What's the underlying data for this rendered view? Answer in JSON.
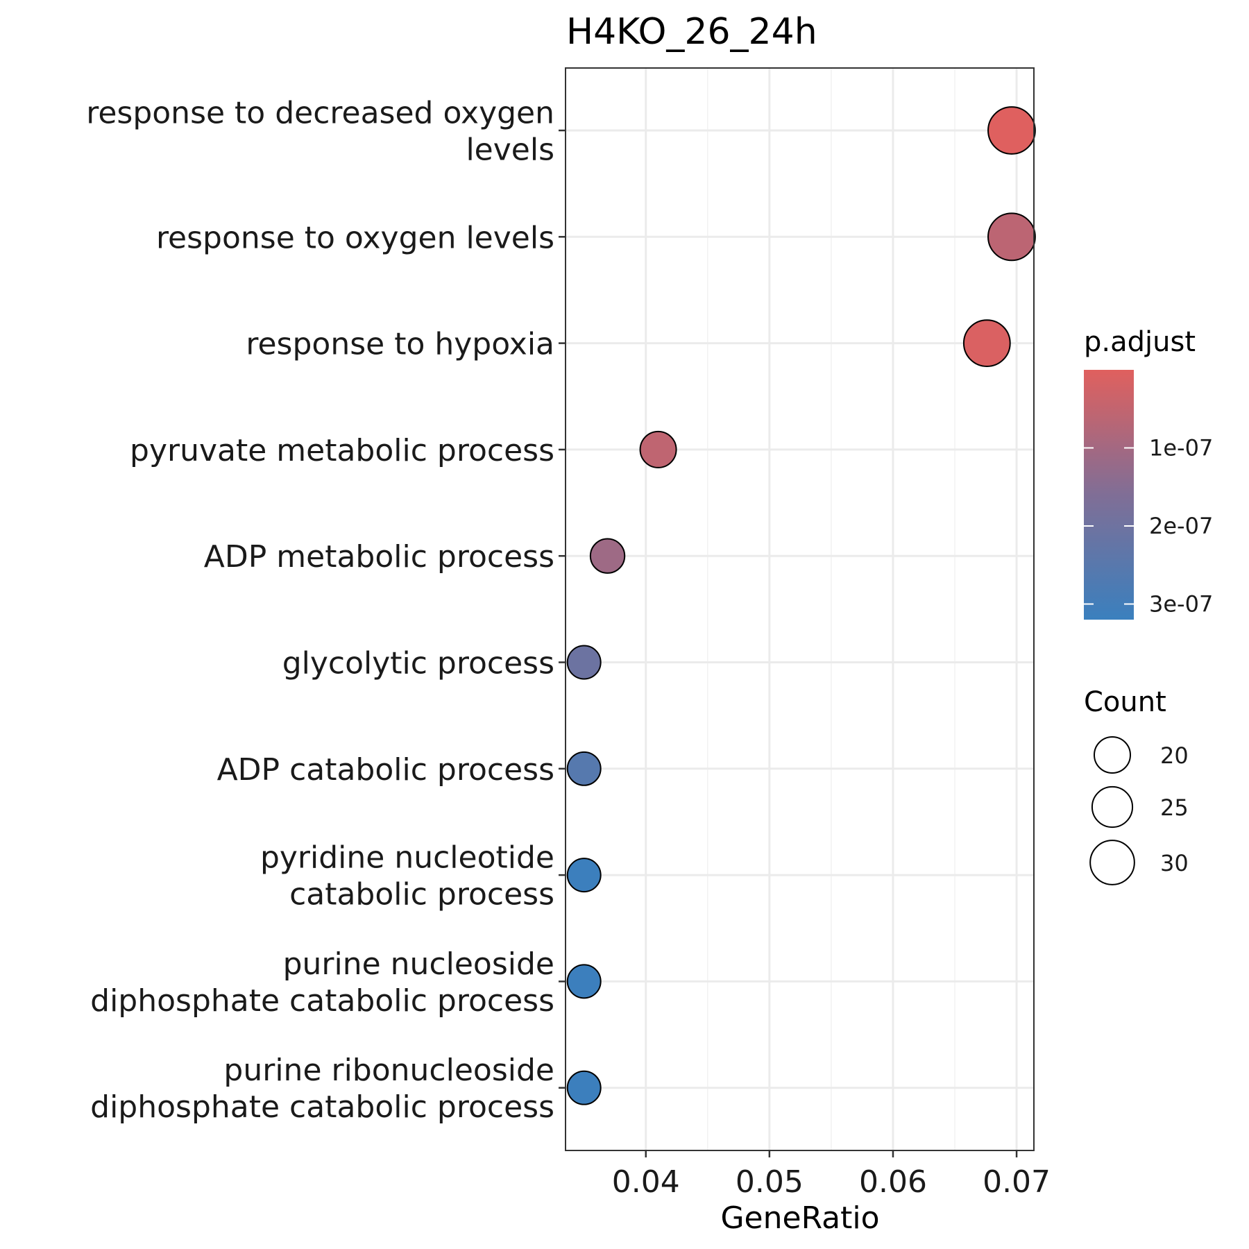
{
  "chart_data": {
    "type": "scatter",
    "title": "H4KO_26_24h",
    "xlabel": "GeneRatio",
    "ylabel": "",
    "xlim": [
      0.0335,
      0.0714
    ],
    "xticks": [
      0.04,
      0.05,
      0.06,
      0.07
    ],
    "xtick_labels": [
      "0.04",
      "0.05",
      "0.06",
      "0.07"
    ],
    "grid": true,
    "categories": [
      [
        "response to decreased oxygen",
        "levels"
      ],
      [
        "response to oxygen levels"
      ],
      [
        "response to hypoxia"
      ],
      [
        "pyruvate metabolic process"
      ],
      [
        "ADP metabolic process"
      ],
      [
        "glycolytic process"
      ],
      [
        "ADP catabolic process"
      ],
      [
        "pyridine nucleotide",
        "catabolic process"
      ],
      [
        "purine nucleoside",
        "diphosphate catabolic process"
      ],
      [
        "purine ribonucleoside",
        "diphosphate catabolic process"
      ]
    ],
    "points": [
      {
        "gene_ratio": 0.0696,
        "count": 34,
        "p_adjust": 2e-09
      },
      {
        "gene_ratio": 0.0696,
        "count": 34,
        "p_adjust": 6e-08
      },
      {
        "gene_ratio": 0.0676,
        "count": 33,
        "p_adjust": 1e-08
      },
      {
        "gene_ratio": 0.041,
        "count": 20,
        "p_adjust": 5.5e-08
      },
      {
        "gene_ratio": 0.0369,
        "count": 18,
        "p_adjust": 1.1e-07
      },
      {
        "gene_ratio": 0.035,
        "count": 17,
        "p_adjust": 2.05e-07
      },
      {
        "gene_ratio": 0.035,
        "count": 17,
        "p_adjust": 2.55e-07
      },
      {
        "gene_ratio": 0.035,
        "count": 17,
        "p_adjust": 3.15e-07
      },
      {
        "gene_ratio": 0.035,
        "count": 17,
        "p_adjust": 3.15e-07
      },
      {
        "gene_ratio": 0.035,
        "count": 17,
        "p_adjust": 3.15e-07
      }
    ],
    "color_legend": {
      "title": "p.adjust",
      "low_color": "#E0605E",
      "high_color": "#3A80BE",
      "range": [
        0.0,
        3.2e-07
      ],
      "ticks": [
        1e-07,
        2e-07,
        3e-07
      ],
      "tick_labels": [
        "1e-07",
        "2e-07",
        "3e-07"
      ]
    },
    "size_legend": {
      "title": "Count",
      "values": [
        20,
        25,
        30
      ],
      "labels": [
        "20",
        "25",
        "30"
      ]
    }
  }
}
